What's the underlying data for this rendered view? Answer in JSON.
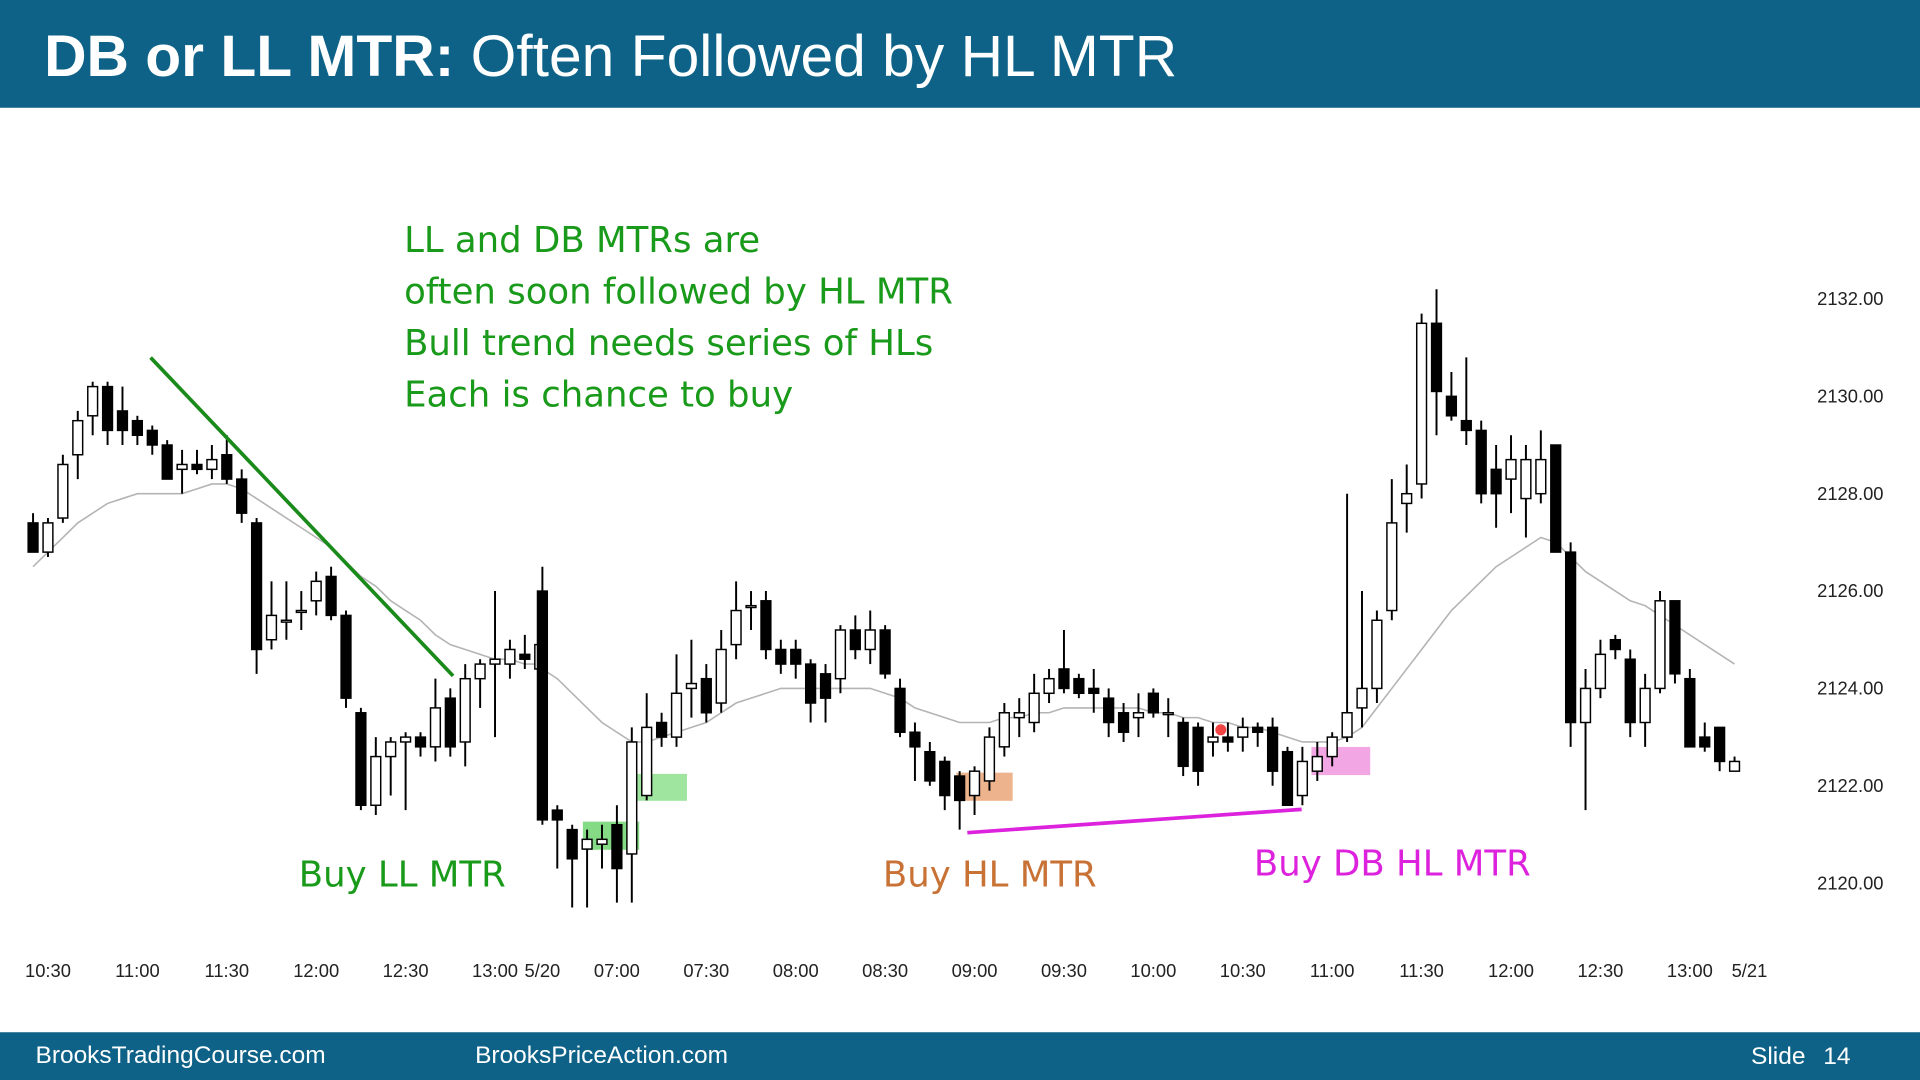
{
  "header": {
    "title_bold": "DB or LL MTR:",
    "title": "Often Followed by HL MTR"
  },
  "footer": {
    "left": "BrooksTradingCourse.com",
    "middle": "BrooksPriceAction.com",
    "slide_label": "Slide",
    "slide_number": 14
  },
  "chart_data": {
    "type": "candlestick",
    "categories": [
      null,
      "10:30",
      null,
      null,
      null,
      null,
      null,
      "11:00",
      null,
      null,
      null,
      null,
      null,
      "11:30",
      null,
      null,
      null,
      null,
      null,
      "12:00",
      null,
      null,
      null,
      null,
      null,
      "12:30",
      null,
      null,
      null,
      null,
      null,
      "13:00",
      null,
      null,
      null,
      "5/20",
      null,
      null,
      null,
      null,
      "07:00",
      null,
      null,
      null,
      null,
      null,
      "07:30",
      null,
      null,
      null,
      null,
      null,
      "08:00",
      null,
      null,
      null,
      null,
      null,
      "08:30",
      null,
      null,
      null,
      null,
      null,
      "09:00",
      null,
      null,
      null,
      null,
      null,
      "09:30",
      null,
      null,
      null,
      null,
      null,
      "10:00",
      null,
      null,
      null,
      null,
      null,
      "10:30",
      null,
      null,
      null,
      null,
      null,
      "11:00",
      null,
      null,
      null,
      null,
      null,
      "11:30",
      null,
      null,
      null,
      null,
      null,
      "12:00",
      null,
      null,
      null,
      null,
      null,
      "12:30",
      null,
      null,
      null,
      null,
      null,
      "13:00",
      null,
      null,
      null,
      "5/21"
    ],
    "values": [
      [
        2127.4,
        2127.6,
        2126.8,
        2126.8
      ],
      [
        2126.8,
        2127.5,
        2126.7,
        2127.4
      ],
      [
        2127.5,
        2128.8,
        2127.4,
        2128.6
      ],
      [
        2128.8,
        2129.7,
        2128.3,
        2129.5
      ],
      [
        2129.6,
        2130.3,
        2129.2,
        2130.2
      ],
      [
        2130.2,
        2130.3,
        2129.0,
        2129.3
      ],
      [
        2129.7,
        2130.2,
        2129.0,
        2129.3
      ],
      [
        2129.5,
        2129.6,
        2129.0,
        2129.2
      ],
      [
        2129.3,
        2129.4,
        2128.8,
        2129.0
      ],
      [
        2129.0,
        2129.1,
        2128.3,
        2128.3
      ],
      [
        2128.5,
        2128.9,
        2128.0,
        2128.6
      ],
      [
        2128.6,
        2128.9,
        2128.4,
        2128.5
      ],
      [
        2128.5,
        2129.0,
        2128.3,
        2128.7
      ],
      [
        2128.8,
        2129.2,
        2128.2,
        2128.3
      ],
      [
        2128.3,
        2128.5,
        2127.4,
        2127.6
      ],
      [
        2127.4,
        2127.5,
        2124.3,
        2124.8
      ],
      [
        2125.0,
        2126.2,
        2124.8,
        2125.5
      ],
      [
        2125.4,
        2126.2,
        2125.0,
        2125.4
      ],
      [
        2125.6,
        2126.0,
        2125.2,
        2125.6
      ],
      [
        2125.8,
        2126.4,
        2125.5,
        2126.2
      ],
      [
        2126.3,
        2126.5,
        2125.4,
        2125.5
      ],
      [
        2125.5,
        2125.6,
        2123.6,
        2123.8
      ],
      [
        2123.5,
        2123.6,
        2121.5,
        2121.6
      ],
      [
        2121.6,
        2123.0,
        2121.4,
        2122.6
      ],
      [
        2122.6,
        2123.0,
        2121.8,
        2122.9
      ],
      [
        2122.9,
        2123.1,
        2121.5,
        2123.0
      ],
      [
        2123.0,
        2123.1,
        2122.6,
        2122.8
      ],
      [
        2122.8,
        2124.2,
        2122.5,
        2123.6
      ],
      [
        2123.8,
        2124.0,
        2122.6,
        2122.8
      ],
      [
        2122.9,
        2124.5,
        2122.4,
        2124.2
      ],
      [
        2124.2,
        2124.6,
        2123.6,
        2124.5
      ],
      [
        2124.5,
        2126.0,
        2123.0,
        2124.6
      ],
      [
        2124.5,
        2125.0,
        2124.2,
        2124.8
      ],
      [
        2124.7,
        2125.1,
        2124.4,
        2124.6
      ],
      [
        2124.4,
        2125.0,
        2123.8,
        2124.9
      ],
      [
        2126.0,
        2126.5,
        2121.2,
        2121.3
      ],
      [
        2121.5,
        2121.6,
        2120.3,
        2121.3
      ],
      [
        2121.1,
        2121.2,
        2119.5,
        2120.5
      ],
      [
        2120.7,
        2121.1,
        2119.5,
        2120.9
      ],
      [
        2120.8,
        2121.2,
        2120.3,
        2120.9
      ],
      [
        2121.2,
        2121.6,
        2119.6,
        2120.3
      ],
      [
        2120.6,
        2123.2,
        2119.6,
        2122.9
      ],
      [
        2121.8,
        2123.9,
        2121.7,
        2123.2
      ],
      [
        2123.3,
        2123.5,
        2122.8,
        2123.0
      ],
      [
        2123.0,
        2124.7,
        2122.8,
        2123.9
      ],
      [
        2124.0,
        2125.0,
        2123.4,
        2124.1
      ],
      [
        2124.2,
        2124.5,
        2123.3,
        2123.5
      ],
      [
        2123.7,
        2125.2,
        2123.5,
        2124.8
      ],
      [
        2124.9,
        2126.2,
        2124.6,
        2125.6
      ],
      [
        2125.7,
        2126.0,
        2125.2,
        2125.7
      ],
      [
        2125.8,
        2126.0,
        2124.6,
        2124.8
      ],
      [
        2124.8,
        2125.0,
        2124.3,
        2124.5
      ],
      [
        2124.8,
        2125.0,
        2124.2,
        2124.5
      ],
      [
        2124.5,
        2124.6,
        2123.3,
        2123.7
      ],
      [
        2124.3,
        2124.5,
        2123.3,
        2123.8
      ],
      [
        2124.2,
        2125.3,
        2123.9,
        2125.2
      ],
      [
        2125.2,
        2125.5,
        2124.6,
        2124.8
      ],
      [
        2124.8,
        2125.6,
        2124.5,
        2125.2
      ],
      [
        2125.2,
        2125.3,
        2124.2,
        2124.3
      ],
      [
        2124.0,
        2124.2,
        2123.0,
        2123.1
      ],
      [
        2123.1,
        2123.3,
        2122.1,
        2122.8
      ],
      [
        2122.7,
        2122.9,
        2122.0,
        2122.1
      ],
      [
        2122.5,
        2122.6,
        2121.5,
        2121.8
      ],
      [
        2122.2,
        2122.3,
        2121.1,
        2121.7
      ],
      [
        2121.8,
        2122.4,
        2121.4,
        2122.3
      ],
      [
        2122.1,
        2123.2,
        2121.9,
        2123.0
      ],
      [
        2122.8,
        2123.7,
        2122.6,
        2123.5
      ],
      [
        2123.4,
        2123.8,
        2123.0,
        2123.5
      ],
      [
        2123.3,
        2124.3,
        2123.1,
        2123.9
      ],
      [
        2123.9,
        2124.4,
        2123.7,
        2124.2
      ],
      [
        2124.4,
        2125.2,
        2123.9,
        2124.0
      ],
      [
        2124.2,
        2124.3,
        2123.8,
        2123.9
      ],
      [
        2124.0,
        2124.4,
        2123.5,
        2123.9
      ],
      [
        2123.8,
        2124.0,
        2123.0,
        2123.3
      ],
      [
        2123.5,
        2123.7,
        2122.9,
        2123.1
      ],
      [
        2123.4,
        2123.9,
        2123.0,
        2123.5
      ],
      [
        2123.9,
        2124.0,
        2123.4,
        2123.5
      ],
      [
        2123.5,
        2123.8,
        2123.0,
        2123.5
      ],
      [
        2123.3,
        2123.4,
        2122.2,
        2122.4
      ],
      [
        2123.2,
        2123.3,
        2122.0,
        2122.3
      ],
      [
        2122.9,
        2123.3,
        2122.6,
        2123.0
      ],
      [
        2123.0,
        2123.3,
        2122.7,
        2122.9
      ],
      [
        2123.0,
        2123.4,
        2122.7,
        2123.2
      ],
      [
        2123.2,
        2123.3,
        2122.8,
        2123.1
      ],
      [
        2123.2,
        2123.4,
        2122.0,
        2122.3
      ],
      [
        2122.7,
        2122.8,
        2121.6,
        2121.6
      ],
      [
        2121.8,
        2122.8,
        2121.6,
        2122.5
      ],
      [
        2122.3,
        2122.9,
        2122.1,
        2122.6
      ],
      [
        2122.6,
        2123.1,
        2122.4,
        2123.0
      ],
      [
        2123.0,
        2128.0,
        2122.9,
        2123.5
      ],
      [
        2123.6,
        2126.0,
        2123.2,
        2124.0
      ],
      [
        2124.0,
        2125.6,
        2123.7,
        2125.4
      ],
      [
        2125.6,
        2128.3,
        2125.4,
        2127.4
      ],
      [
        2127.8,
        2128.6,
        2127.2,
        2128.0
      ],
      [
        2128.2,
        2131.7,
        2127.9,
        2131.5
      ],
      [
        2131.5,
        2132.2,
        2129.2,
        2130.1
      ],
      [
        2130.0,
        2130.5,
        2129.5,
        2129.6
      ],
      [
        2129.5,
        2130.8,
        2129.0,
        2129.3
      ],
      [
        2129.3,
        2129.5,
        2127.8,
        2128.0
      ],
      [
        2128.5,
        2129.0,
        2127.3,
        2128.0
      ],
      [
        2128.3,
        2129.2,
        2127.6,
        2128.7
      ],
      [
        2127.9,
        2129.0,
        2127.1,
        2128.7
      ],
      [
        2128.0,
        2129.3,
        2127.8,
        2128.7
      ],
      [
        2129.0,
        2129.0,
        2126.8,
        2126.8
      ],
      [
        2126.8,
        2127.0,
        2122.8,
        2123.3
      ],
      [
        2123.3,
        2124.4,
        2121.5,
        2124.0
      ],
      [
        2124.0,
        2125.0,
        2123.8,
        2124.7
      ],
      [
        2125.0,
        2125.1,
        2124.6,
        2124.8
      ],
      [
        2124.6,
        2124.8,
        2123.0,
        2123.3
      ],
      [
        2123.3,
        2124.3,
        2122.8,
        2124.0
      ],
      [
        2124.0,
        2126.0,
        2123.9,
        2125.8
      ],
      [
        2125.8,
        2125.8,
        2124.1,
        2124.3
      ],
      [
        2124.2,
        2124.4,
        2122.8,
        2122.8
      ],
      [
        2123.0,
        2123.3,
        2122.7,
        2122.8
      ],
      [
        2123.2,
        2123.2,
        2122.3,
        2122.5
      ],
      [
        2122.3,
        2122.6,
        2122.3,
        2122.5
      ],
      null
    ],
    "moving_average": {
      "color": "#b4b4b4",
      "values": [
        2126.5,
        2126.8,
        2127.1,
        2127.4,
        2127.6,
        2127.8,
        2127.9,
        2128.0,
        2128.0,
        2128.0,
        2128.0,
        2128.1,
        2128.2,
        2128.2,
        2128.1,
        2127.9,
        2127.7,
        2127.5,
        2127.3,
        2127.1,
        2126.9,
        2126.6,
        2126.3,
        2126.1,
        2125.8,
        2125.6,
        2125.4,
        2125.1,
        2124.9,
        2124.8,
        2124.7,
        2124.6,
        2124.6,
        2124.5,
        2124.5,
        2124.4,
        2124.2,
        2123.9,
        2123.6,
        2123.3,
        2123.1,
        2122.9,
        2122.9,
        2123.0,
        2123.1,
        2123.2,
        2123.3,
        2123.5,
        2123.7,
        2123.8,
        2123.9,
        2124.0,
        2124.0,
        2124.0,
        2124.0,
        2124.0,
        2124.0,
        2124.0,
        2123.9,
        2123.8,
        2123.6,
        2123.5,
        2123.4,
        2123.3,
        2123.3,
        2123.3,
        2123.4,
        2123.4,
        2123.5,
        2123.5,
        2123.6,
        2123.6,
        2123.6,
        2123.6,
        2123.6,
        2123.6,
        2123.5,
        2123.5,
        2123.4,
        2123.4,
        2123.3,
        2123.3,
        2123.2,
        2123.2,
        2123.1,
        2123.0,
        2122.9,
        2122.9,
        2122.9,
        2123.0,
        2123.2,
        2123.6,
        2124.0,
        2124.4,
        2124.8,
        2125.2,
        2125.6,
        2125.9,
        2126.2,
        2126.5,
        2126.7,
        2126.9,
        2127.1,
        2127.0,
        2126.7,
        2126.4,
        2126.2,
        2126.0,
        2125.8,
        2125.7,
        2125.5,
        2125.3,
        2125.1,
        2124.9,
        2124.7,
        2124.5,
        null
      ]
    },
    "up_color": "#ffffff",
    "down_color": "#000000",
    "ylim": [
      2119,
      2135.5
    ],
    "yticks": [
      {
        "value": 2120,
        "label": "2120.00"
      },
      {
        "value": 2122,
        "label": "2122.00"
      },
      {
        "value": 2124,
        "label": "2124.00"
      },
      {
        "value": 2126,
        "label": "2126.00"
      },
      {
        "value": 2128,
        "label": "2128.00"
      },
      {
        "value": 2130,
        "label": "2130.00"
      },
      {
        "value": 2132,
        "label": "2132.00"
      }
    ],
    "grid": false,
    "annotations": [
      {
        "text": "LL and DB MTRs are",
        "color": "#1a9a1a"
      },
      {
        "text": "often soon followed by HL MTR",
        "color": "#1a9a1a"
      },
      {
        "text": "Bull trend needs series of HLs",
        "color": "#1a9a1a"
      },
      {
        "text": "Each is chance to buy",
        "color": "#1a9a1a"
      },
      {
        "text": "Buy LL MTR",
        "color": "#1a9a1a"
      },
      {
        "text": "Buy HL MTR",
        "color": "#c87236"
      },
      {
        "text": "Buy DB HL MTR",
        "color": "#dd22dd"
      }
    ]
  }
}
